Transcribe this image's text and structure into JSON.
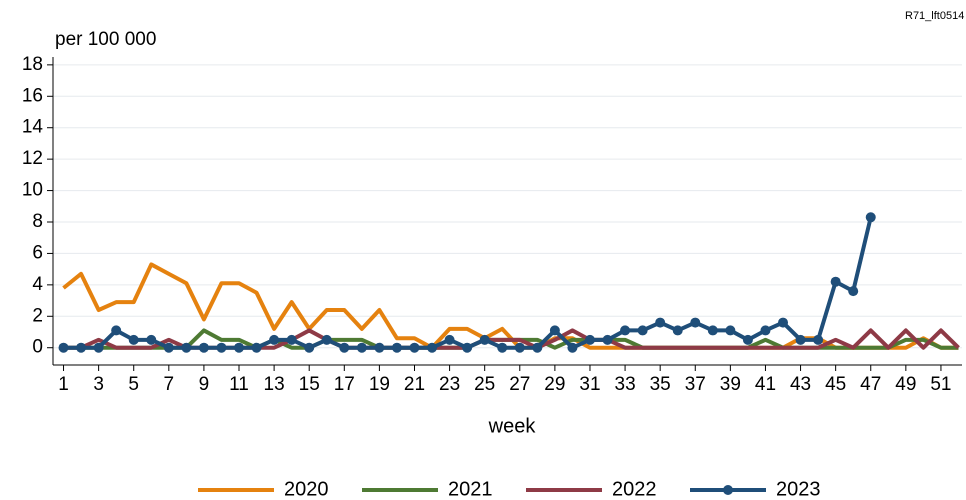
{
  "chart_data": {
    "type": "line",
    "source_id": "R71_lft0514",
    "y_label": "per 100 000",
    "x_label": "week",
    "x": [
      1,
      2,
      3,
      4,
      5,
      6,
      7,
      8,
      9,
      10,
      11,
      12,
      13,
      14,
      15,
      16,
      17,
      18,
      19,
      20,
      21,
      22,
      23,
      24,
      25,
      26,
      27,
      28,
      29,
      30,
      31,
      32,
      33,
      34,
      35,
      36,
      37,
      38,
      39,
      40,
      41,
      42,
      43,
      44,
      45,
      46,
      47,
      48,
      49,
      50,
      51,
      52
    ],
    "xlim": [
      0.4,
      52.2
    ],
    "xticks": [
      1,
      3,
      5,
      7,
      9,
      11,
      13,
      15,
      17,
      19,
      21,
      23,
      25,
      27,
      29,
      31,
      33,
      35,
      37,
      39,
      41,
      43,
      45,
      47,
      49,
      51
    ],
    "ylim": [
      -1.1,
      18.5
    ],
    "yticks": [
      0,
      2,
      4,
      6,
      8,
      10,
      12,
      14,
      16,
      18
    ],
    "grid": true,
    "series": [
      {
        "name": "2020",
        "color": "#e5820f",
        "markers": false,
        "values": [
          3.8,
          4.7,
          2.4,
          2.9,
          2.9,
          5.3,
          4.7,
          4.1,
          1.8,
          4.1,
          4.1,
          3.5,
          1.2,
          2.9,
          1.2,
          2.4,
          2.4,
          1.2,
          2.4,
          0.6,
          0.6,
          0,
          1.2,
          1.2,
          0.6,
          1.2,
          0,
          0,
          0.6,
          0.6,
          0,
          0,
          0,
          0,
          0,
          0,
          0,
          0,
          0,
          0,
          0,
          0,
          0.6,
          0.6,
          0,
          0,
          0,
          0,
          0,
          0.6,
          0,
          0
        ]
      },
      {
        "name": "2021",
        "color": "#4e7a33",
        "markers": false,
        "values": [
          0,
          0,
          0,
          0,
          0,
          0,
          0,
          0,
          1.1,
          0.5,
          0.5,
          0,
          0.5,
          0,
          0,
          0.5,
          0.5,
          0.5,
          0,
          0,
          0,
          0,
          0,
          0,
          0.5,
          0.5,
          0.5,
          0.5,
          0,
          0.5,
          0.5,
          0.5,
          0.5,
          0,
          0,
          0,
          0,
          0,
          0,
          0,
          0.5,
          0,
          0,
          0,
          0,
          0,
          0,
          0,
          0.5,
          0.5,
          0,
          0
        ]
      },
      {
        "name": "2022",
        "color": "#8e3a46",
        "markers": false,
        "values": [
          0,
          0,
          0.5,
          0,
          0,
          0,
          0.5,
          0,
          0,
          0,
          0,
          0,
          0,
          0.5,
          1.1,
          0.5,
          0,
          0,
          0,
          0,
          0,
          0,
          0,
          0,
          0.5,
          0.5,
          0.5,
          0,
          0.5,
          1.1,
          0.5,
          0.5,
          0,
          0,
          0,
          0,
          0,
          0,
          0,
          0,
          0,
          0,
          0,
          0,
          0.5,
          0,
          1.1,
          0,
          1.1,
          0,
          1.1,
          0
        ]
      },
      {
        "name": "2023",
        "color": "#1f4e79",
        "markers": true,
        "values": [
          0,
          0,
          0,
          1.1,
          0.5,
          0.5,
          0,
          0,
          0,
          0,
          0,
          0,
          0.5,
          0.5,
          0,
          0.5,
          0,
          0,
          0,
          0,
          0,
          0,
          0.5,
          0,
          0.5,
          0,
          0,
          0,
          1.1,
          0,
          0.5,
          0.5,
          1.1,
          1.1,
          1.6,
          1.1,
          1.6,
          1.1,
          1.1,
          0.5,
          1.1,
          1.6,
          0.5,
          0.5,
          4.2,
          3.6,
          8.3,
          null,
          null,
          null,
          null,
          null
        ]
      }
    ]
  }
}
